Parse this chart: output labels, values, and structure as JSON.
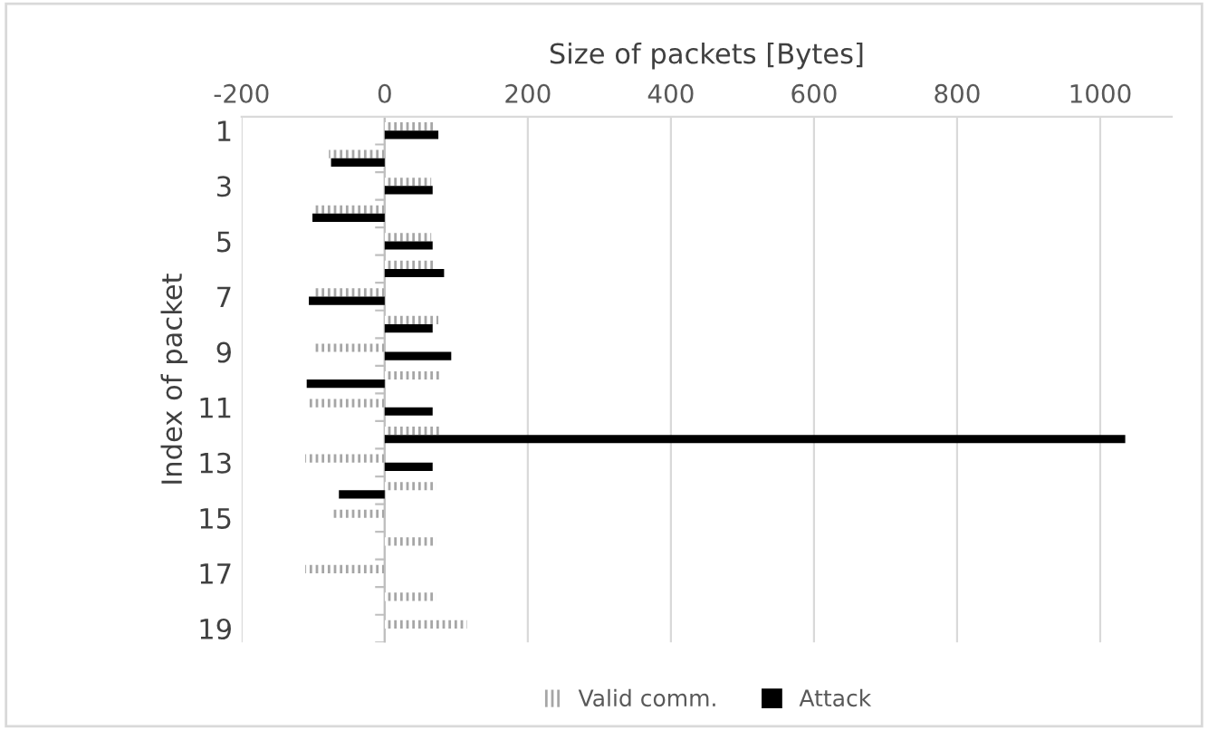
{
  "chart_data": {
    "type": "bar",
    "orientation": "horizontal",
    "xlabel": "Size of packets [Bytes]",
    "ylabel": "Index of packet",
    "categories": [
      "1",
      null,
      "3",
      null,
      "5",
      null,
      "7",
      null,
      "9",
      null,
      "11",
      null,
      "13",
      null,
      "15",
      null,
      "17",
      null,
      "19"
    ],
    "series": [
      {
        "name": "Valid comm.",
        "color": "#a6a6a6",
        "values": [
          70,
          -78,
          65,
          -101,
          65,
          71,
          -101,
          75,
          -101,
          77,
          -107,
          77,
          -111,
          72,
          -75,
          72,
          -111,
          72,
          115
        ]
      },
      {
        "name": "Attack",
        "color": "#000000",
        "values": [
          75,
          -75,
          67,
          -101,
          67,
          83,
          -106,
          67,
          93,
          -109,
          67,
          1035,
          67,
          -64,
          null,
          null,
          null,
          null,
          null
        ]
      }
    ],
    "xlim": [
      -200,
      1100
    ],
    "xticks": [
      -200,
      0,
      200,
      400,
      600,
      800,
      1000
    ],
    "grid": "x",
    "legend": "bottom"
  }
}
